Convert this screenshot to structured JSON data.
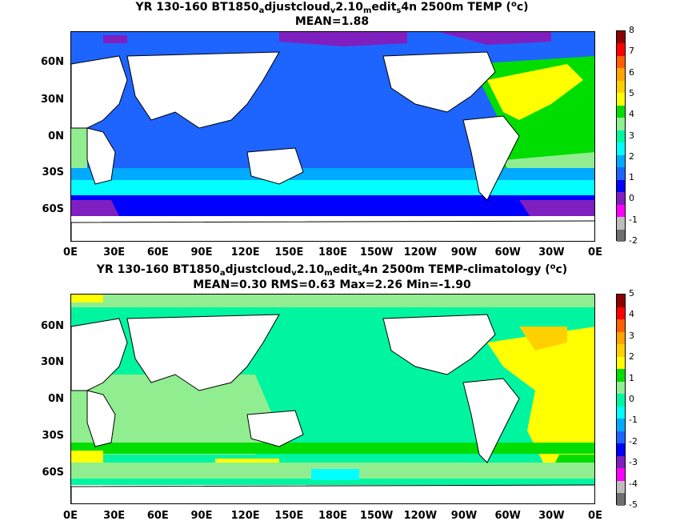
{
  "panels": [
    {
      "title_parts": [
        "YR 130-160 BT1850",
        "a",
        "djustcloud",
        "v",
        "2.10",
        "m",
        "edit",
        "s",
        "4n 2500m TEMP (",
        "o",
        "c)"
      ],
      "subtitle": "MEAN=1.88",
      "colorbar_labels": [
        "8",
        "7",
        "6",
        "5",
        "4",
        "3",
        "2",
        "1",
        "0",
        "-1",
        "-2"
      ]
    },
    {
      "title_parts": [
        "YR 130-160 BT1850",
        "a",
        "djustcloud",
        "v",
        "2.10",
        "m",
        "edit",
        "s",
        "4n 2500m TEMP-climatology (",
        "o",
        "c)"
      ],
      "subtitle": "MEAN=0.30   RMS=0.63   Max=2.26   Min=-1.90",
      "colorbar_labels": [
        "5",
        "4",
        "3",
        "2",
        "1",
        "0",
        "-1",
        "-2",
        "-3",
        "-4",
        "-5"
      ]
    }
  ],
  "lat_labels": [
    "60N",
    "30N",
    "0N",
    "30S",
    "60S"
  ],
  "lon_labels": [
    "0E",
    "30E",
    "60E",
    "90E",
    "120E",
    "150E",
    "180E",
    "150W",
    "120W",
    "90W",
    "60W",
    "30W",
    "0E"
  ],
  "colorbar_colors": [
    "#6e6e6e",
    "#bdbdbd",
    "#ff00ff",
    "#7f1fbf",
    "#0000ff",
    "#1e64ff",
    "#00aaff",
    "#00ffff",
    "#00f5a0",
    "#90ee90",
    "#00dd00",
    "#ffff00",
    "#ffd000",
    "#ffa500",
    "#ff6000",
    "#ff0000",
    "#8b0000"
  ],
  "land_color": "#ffffff",
  "coast_color": "#000000"
}
